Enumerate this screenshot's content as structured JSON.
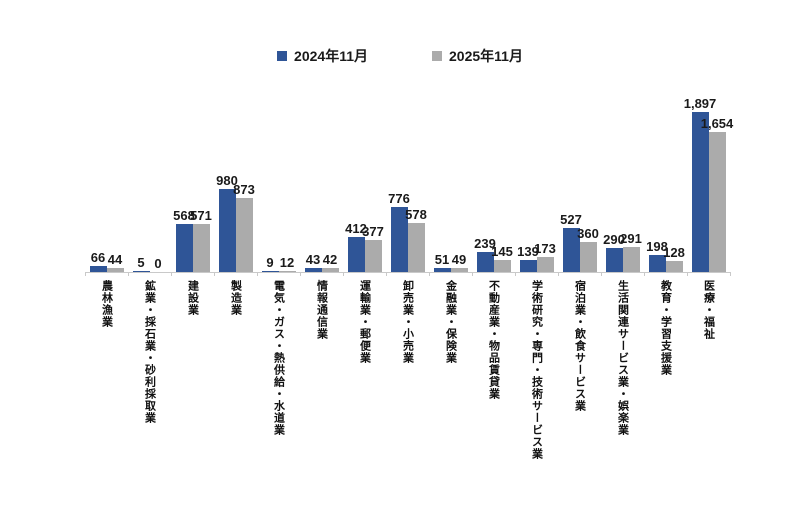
{
  "chart_data": {
    "type": "bar",
    "title": "",
    "xlabel": "",
    "ylabel": "",
    "grid": false,
    "legend_position": "top",
    "value_labels": true,
    "ylim": [
      0,
      2000
    ],
    "axis_color": "#c9c9c9",
    "text_color": "#1a1a1a",
    "categories": [
      "農林漁業",
      "鉱業・採石業・砂利採取業",
      "建設業",
      "製造業",
      "電気・ガス・熱供給・水道業",
      "情報通信業",
      "運輸業・郵便業",
      "卸売業・小売業",
      "金融業・保険業",
      "不動産業・物品賃貸業",
      "学術研究・専門・技術サービス業",
      "宿泊業・飲食サービス業",
      "生活関連サービス業・娯楽業",
      "教育・学習支援業",
      "医療・福祉"
    ],
    "series": [
      {
        "name": "2024年11月",
        "color": "#2F5597",
        "values": [
          66,
          5,
          568,
          980,
          9,
          43,
          412,
          776,
          51,
          239,
          139,
          527,
          290,
          198,
          1897
        ]
      },
      {
        "name": "2025年11月",
        "color": "#ABABAB",
        "values": [
          44,
          0,
          571,
          873,
          12,
          42,
          377,
          578,
          49,
          145,
          173,
          360,
          291,
          128,
          1654
        ]
      }
    ]
  }
}
